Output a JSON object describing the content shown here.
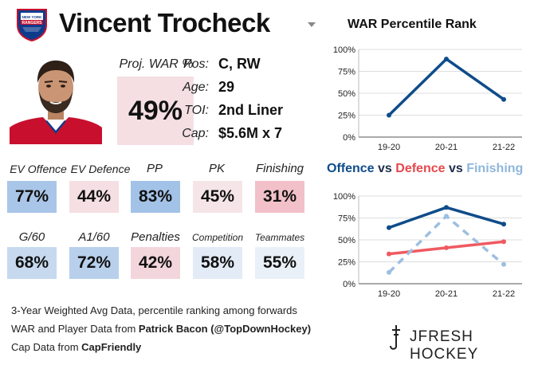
{
  "header": {
    "player_name": "Vincent Trocheck",
    "team_logo_text": "NEW YORK RANGERS"
  },
  "proj_war": {
    "label": "Proj. WAR %",
    "value": "49%",
    "color": "#f5dfe3"
  },
  "info": {
    "pos_label": "Pos:",
    "pos_value": "C, RW",
    "age_label": "Age:",
    "age_value": "29",
    "toi_label": "TOI:",
    "toi_value": "2nd Liner",
    "cap_label": "Cap:",
    "cap_value": "$5.6M x 7"
  },
  "stats_row1": [
    {
      "label": "EV Offence",
      "value": "77%",
      "color": "#a9c6e8"
    },
    {
      "label": "EV Defence",
      "value": "44%",
      "color": "#f5dfe3"
    },
    {
      "label": "PP",
      "value": "83%",
      "color": "#a3c2e8"
    },
    {
      "label": "PK",
      "value": "45%",
      "color": "#f5e4e8"
    },
    {
      "label": "Finishing",
      "value": "31%",
      "color": "#f2c0c8"
    }
  ],
  "stats_row2": [
    {
      "label": "G/60",
      "value": "68%",
      "color": "#c6d9ef"
    },
    {
      "label": "A1/60",
      "value": "72%",
      "color": "#b8d0ec"
    },
    {
      "label": "Penalties",
      "value": "42%",
      "color": "#f3d6dc"
    },
    {
      "label": "Competition",
      "value": "58%",
      "color": "#e3ebf6"
    },
    {
      "label": "Teammates",
      "value": "55%",
      "color": "#eaf0f8"
    }
  ],
  "footer": {
    "line1": "3-Year Weighted Avg Data, percentile ranking among forwards",
    "line2_prefix": "WAR and Player Data from ",
    "line2_bold": "Patrick Bacon (@TopDownHockey)",
    "line3_prefix": "Cap Data from ",
    "line3_bold": "CapFriendly",
    "brand": "JFRESH HOCKEY"
  },
  "chart_data": [
    {
      "type": "line",
      "title": "WAR Percentile Rank",
      "categories": [
        "19-20",
        "20-21",
        "21-22"
      ],
      "series": [
        {
          "values": [
            25,
            89,
            43
          ],
          "color": "#0f4c8a"
        }
      ],
      "yticks": [
        "0%",
        "25%",
        "50%",
        "75%",
        "100%"
      ],
      "ylim": [
        0,
        100
      ],
      "grid": true
    },
    {
      "type": "line",
      "title_parts": [
        {
          "text": "Offence",
          "color": "#0f4c8a"
        },
        {
          "text": " vs ",
          "color": "#1f2d4a"
        },
        {
          "text": "Defence",
          "color": "#e5484d"
        },
        {
          "text": " vs ",
          "color": "#1f2d4a"
        },
        {
          "text": "Finishing",
          "color": "#8fb6dc"
        }
      ],
      "categories": [
        "19-20",
        "20-21",
        "21-22"
      ],
      "series": [
        {
          "name": "Offence",
          "values": [
            64,
            87,
            68
          ],
          "color": "#0f4c8a",
          "style": "solid"
        },
        {
          "name": "Defence",
          "values": [
            34,
            41,
            48
          ],
          "color": "#ef5a60",
          "style": "solid"
        },
        {
          "name": "Finishing",
          "values": [
            13,
            77,
            22
          ],
          "color": "#9dbfe0",
          "style": "dashed"
        }
      ],
      "yticks": [
        "0%",
        "25%",
        "50%",
        "75%",
        "100%"
      ],
      "ylim": [
        0,
        100
      ],
      "grid": true
    }
  ]
}
